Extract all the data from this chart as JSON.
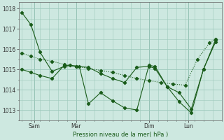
{
  "xlabel": "Pression niveau de la mer( hPa )",
  "ylim": [
    1012.5,
    1018.3
  ],
  "xlim": [
    -0.5,
    33
  ],
  "yticks": [
    1013,
    1014,
    1015,
    1016,
    1017,
    1018
  ],
  "xtick_positions": [
    2,
    9,
    21,
    27.5
  ],
  "xtick_labels": [
    "Sam",
    "Mar",
    "Dim",
    "Lun"
  ],
  "vline_positions": [
    2,
    9,
    21,
    27.5
  ],
  "bg_color": "#cde8e0",
  "grid_color": "#9dc8bc",
  "line_color": "#1a5c1a",
  "series_A_x": [
    0,
    1.5,
    3,
    5,
    7,
    8,
    9.5,
    11,
    13,
    15,
    17,
    19,
    21,
    22,
    24,
    26,
    28,
    30,
    32
  ],
  "series_A_y": [
    1017.8,
    1017.2,
    1015.85,
    1014.9,
    1015.15,
    1015.2,
    1015.15,
    1013.3,
    1013.85,
    1013.45,
    1013.1,
    1013.0,
    1015.2,
    1015.15,
    1014.15,
    1013.85,
    1013.05,
    1015.0,
    1016.45
  ],
  "series_B_x": [
    0,
    1.5,
    3,
    5,
    7,
    9,
    11,
    13,
    15,
    17,
    19,
    21,
    23,
    25,
    27,
    29,
    31,
    32
  ],
  "series_B_y": [
    1015.8,
    1015.65,
    1015.5,
    1015.4,
    1015.25,
    1015.15,
    1015.05,
    1014.95,
    1014.85,
    1014.7,
    1014.55,
    1014.45,
    1014.35,
    1014.28,
    1014.22,
    1015.5,
    1016.3,
    1016.5
  ],
  "series_C_x": [
    0,
    1.5,
    3,
    5,
    7,
    9,
    11,
    13,
    15,
    17,
    19,
    21,
    22,
    24,
    26,
    28,
    30,
    32
  ],
  "series_C_y": [
    1015.0,
    1014.85,
    1014.7,
    1014.55,
    1015.2,
    1015.15,
    1015.1,
    1014.8,
    1014.55,
    1014.35,
    1015.1,
    1015.15,
    1015.05,
    1014.15,
    1013.4,
    1012.85,
    1015.0,
    1016.35
  ]
}
